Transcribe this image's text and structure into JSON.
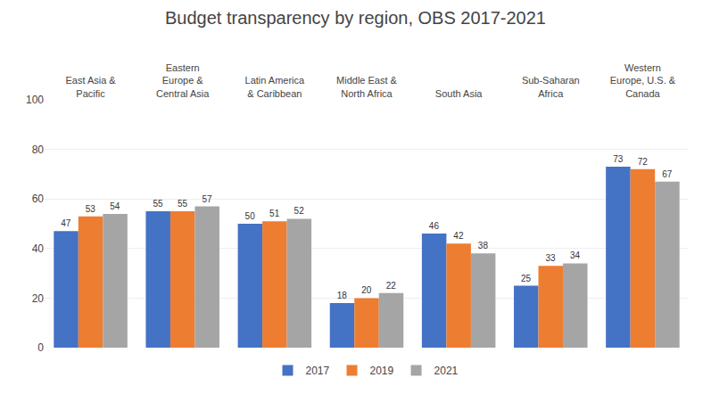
{
  "chart_data": {
    "type": "bar",
    "title": "Budget transparency by region, OBS 2017-2021",
    "categories": [
      "East Asia &\nPacific",
      "Eastern\nEurope &\nCentral Asia",
      "Latin America\n& Caribbean",
      "Middle East &\nNorth Africa",
      "South Asia",
      "Sub-Saharan\nAfrica",
      "Western\nEurope, U.S. &\nCanada"
    ],
    "series": [
      {
        "name": "2017",
        "color": "#4472C4",
        "values": [
          47,
          55,
          50,
          18,
          46,
          25,
          73
        ]
      },
      {
        "name": "2019",
        "color": "#ED7D31",
        "values": [
          53,
          55,
          51,
          20,
          42,
          33,
          72
        ]
      },
      {
        "name": "2021",
        "color": "#A5A5A5",
        "values": [
          54,
          57,
          52,
          22,
          38,
          34,
          67
        ]
      }
    ],
    "ylim": [
      0,
      100
    ],
    "yticks": [
      0,
      20,
      40,
      60,
      80,
      100
    ],
    "grid": true,
    "legend": "bottom",
    "data_labels": true
  }
}
